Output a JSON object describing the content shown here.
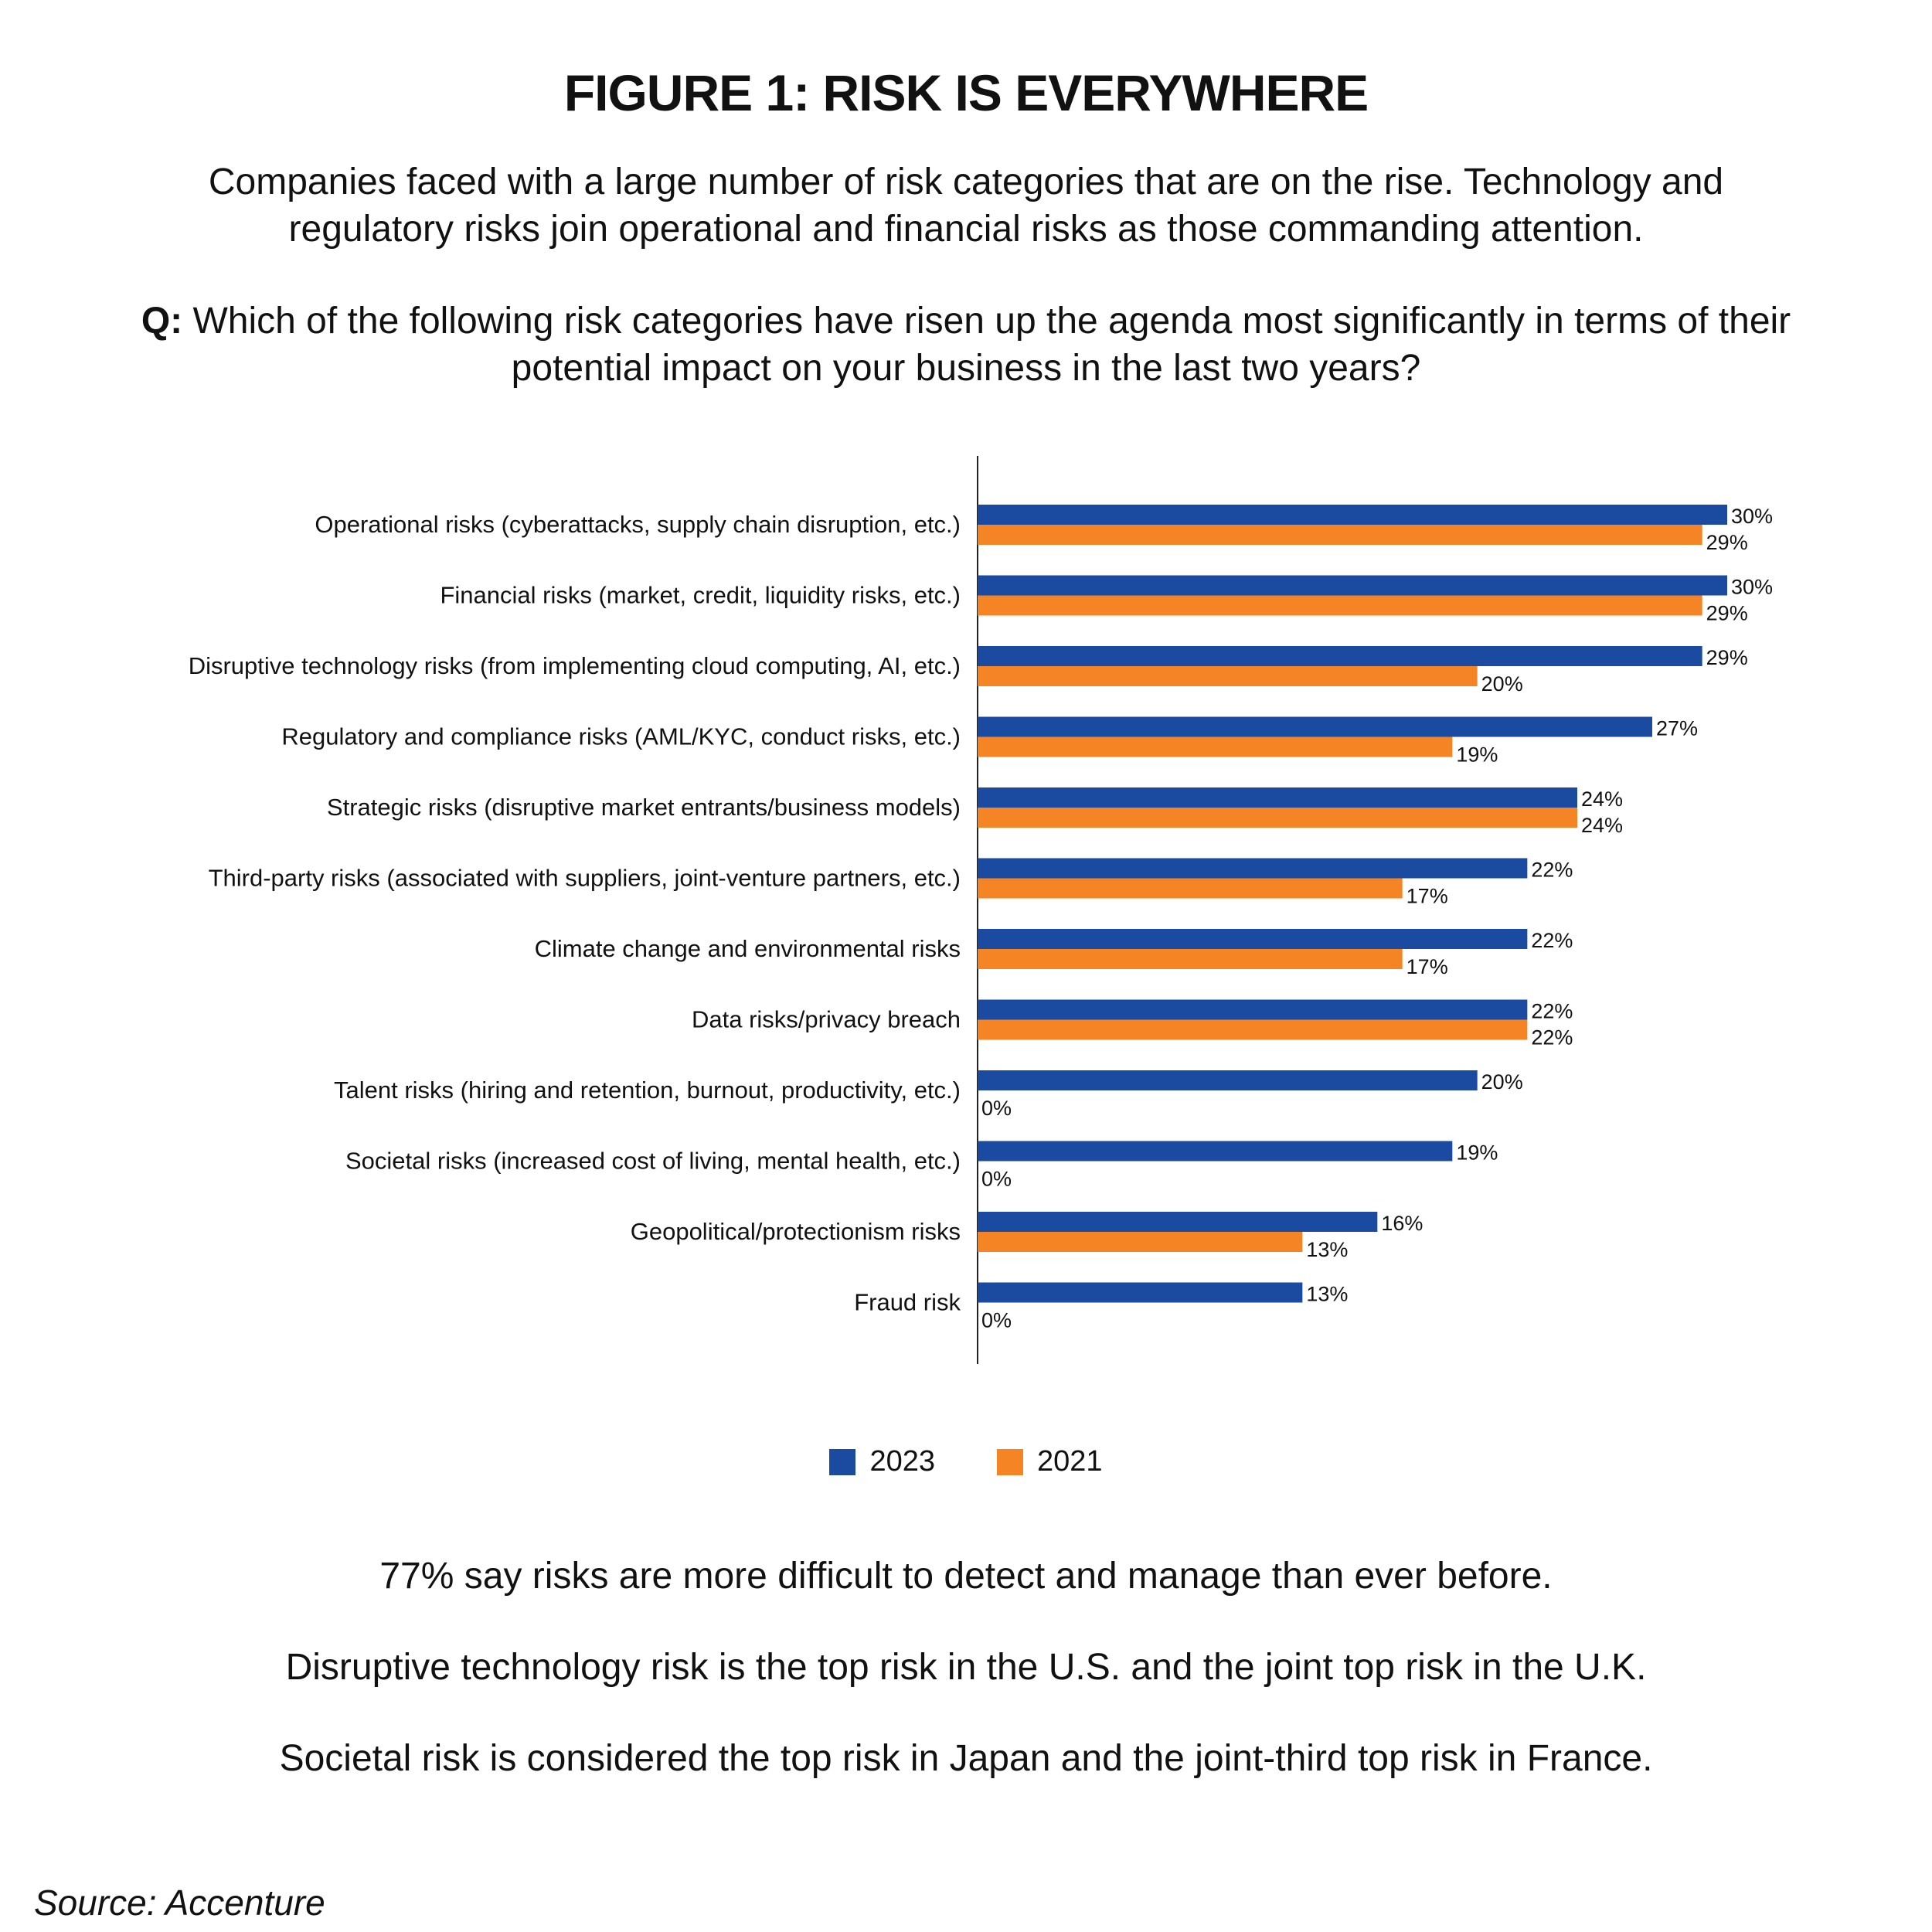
{
  "header": {
    "title": "FIGURE 1: RISK IS EVERYWHERE",
    "subtitle": "Companies faced with a large number of risk categories that are on the rise. Technology and regulatory risks join operational and financial risks as those commanding attention.",
    "question_label": "Q:",
    "question_text": "Which of the following risk categories have risen up the agenda most significantly in terms of their potential impact on your business in the last two years?"
  },
  "colors": {
    "series_2023": "#1b4aa1",
    "series_2021": "#f58524",
    "axis": "#222222"
  },
  "chart_data": {
    "type": "bar",
    "orientation": "horizontal",
    "categories": [
      "Operational risks (cyberattacks, supply chain disruption, etc.)",
      "Financial risks (market, credit, liquidity risks, etc.)",
      "Disruptive technology risks (from implementing cloud computing, AI, etc.)",
      "Regulatory and compliance risks (AML/KYC, conduct risks, etc.)",
      "Strategic risks (disruptive market entrants/business models)",
      "Third-party risks (associated with suppliers, joint-venture partners, etc.)",
      "Climate change and environmental risks",
      "Data risks/privacy breach",
      "Talent risks (hiring and retention, burnout, productivity, etc.)",
      "Societal risks (increased cost of living, mental health, etc.)",
      "Geopolitical/protectionism risks",
      "Fraud risk"
    ],
    "series": [
      {
        "name": "2023",
        "values": [
          30,
          30,
          29,
          27,
          24,
          22,
          22,
          22,
          20,
          19,
          16,
          13
        ]
      },
      {
        "name": "2021",
        "values": [
          29,
          29,
          20,
          19,
          24,
          17,
          17,
          22,
          0,
          0,
          13,
          0
        ]
      }
    ],
    "value_suffix": "%",
    "xlim": [
      0,
      30
    ],
    "grid": false,
    "legend_position": "bottom-center",
    "title": "FIGURE 1: RISK IS EVERYWHERE",
    "xlabel": "",
    "ylabel": ""
  },
  "legend": {
    "items": [
      "2023",
      "2021"
    ]
  },
  "footnotes": [
    "77% say risks are more difficult to detect and manage than ever before.",
    "Disruptive technology risk is the top risk in the U.S. and the joint top risk in the U.K.",
    "Societal risk is considered the top risk in Japan and the joint-third top risk in France."
  ],
  "source": "Source: Accenture"
}
